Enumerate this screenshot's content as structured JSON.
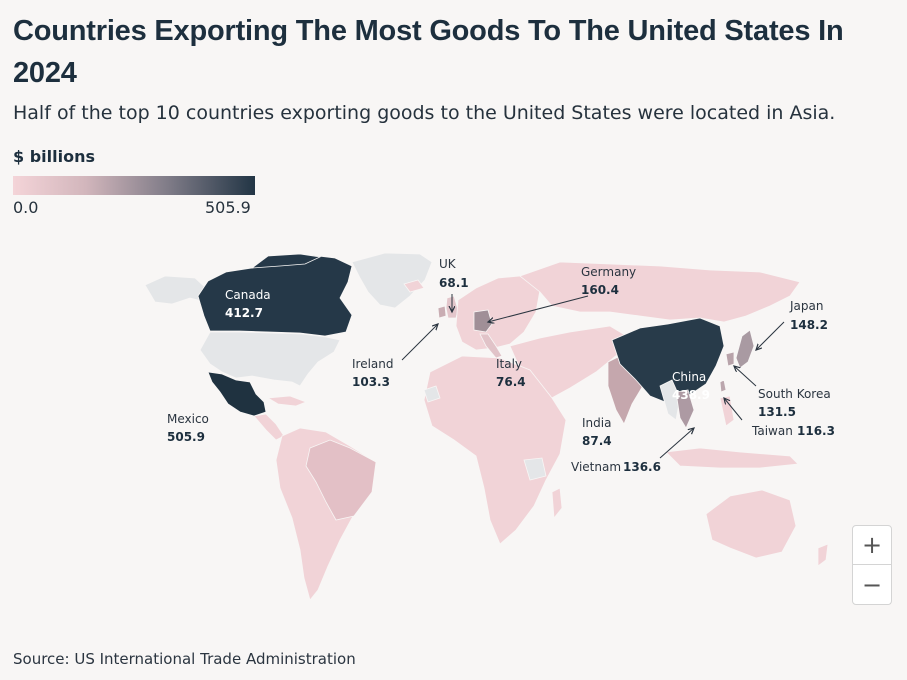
{
  "title": "Countries Exporting The Most Goods To The United States In 2024",
  "subtitle": "Half of the top 10 countries exporting goods to the United States were located in Asia.",
  "legend": {
    "title": "$ billions",
    "min": "0.0",
    "max": "505.9",
    "color_low": "#f4d4d8",
    "color_high": "#223545"
  },
  "countries": [
    {
      "name": "Mexico",
      "value": 505.9,
      "value_label": "505.9"
    },
    {
      "name": "China",
      "value": 438.9,
      "value_label": "438.9"
    },
    {
      "name": "Canada",
      "value": 412.7,
      "value_label": "412.7"
    },
    {
      "name": "Germany",
      "value": 160.4,
      "value_label": "160.4"
    },
    {
      "name": "Japan",
      "value": 148.2,
      "value_label": "148.2"
    },
    {
      "name": "Vietnam",
      "value": 136.6,
      "value_label": "136.6"
    },
    {
      "name": "South Korea",
      "value": 131.5,
      "value_label": "131.5"
    },
    {
      "name": "Taiwan",
      "value": 116.3,
      "value_label": "116.3"
    },
    {
      "name": "Ireland",
      "value": 103.3,
      "value_label": "103.3"
    },
    {
      "name": "India",
      "value": 87.4,
      "value_label": "87.4"
    },
    {
      "name": "Italy",
      "value": 76.4,
      "value_label": "76.4"
    },
    {
      "name": "UK",
      "value": 68.1,
      "value_label": "68.1"
    }
  ],
  "controls": {
    "zoom_in": "+",
    "zoom_out": "−"
  },
  "source": "Source: US International Trade Administration"
}
